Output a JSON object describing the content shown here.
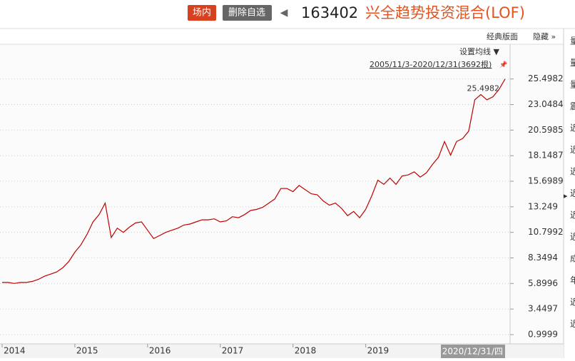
{
  "header": {
    "market_badge": "场内",
    "remove_button": "删除自选",
    "back_arrow": "◀",
    "code": "163402",
    "name": "兴全趋势投资混合(LOF)"
  },
  "toolbar": {
    "layout": "经典版面",
    "hide": "隐藏 »"
  },
  "chart_controls": {
    "moving_average": "设置均线 ▼",
    "range": "2005/11/3-2020/12/31(3692根)",
    "pin": "📌"
  },
  "sidebar": [
    "量",
    "量",
    "量",
    "震",
    "近",
    "近",
    "近",
    "近",
    "近",
    "近",
    "成",
    "年",
    "近",
    "近"
  ],
  "sidebar_arrow": "▸",
  "chart_data": {
    "type": "line",
    "categories": [
      "2014",
      null,
      null,
      null,
      null,
      null,
      null,
      null,
      null,
      null,
      null,
      null,
      "2015",
      null,
      null,
      null,
      null,
      null,
      null,
      null,
      null,
      null,
      null,
      null,
      "2016",
      null,
      null,
      null,
      null,
      null,
      null,
      null,
      null,
      null,
      null,
      null,
      "2017",
      null,
      null,
      null,
      null,
      null,
      null,
      null,
      null,
      null,
      null,
      null,
      "2018",
      null,
      null,
      null,
      null,
      null,
      null,
      null,
      null,
      null,
      null,
      null,
      "2019",
      null,
      null,
      null,
      null,
      null,
      null,
      null,
      null,
      null,
      null,
      null,
      null,
      null,
      null,
      null,
      null,
      null,
      null,
      null,
      null,
      null,
      null,
      "2020/12/31/四"
    ],
    "series": [
      {
        "color": "#c00000",
        "values": [
          6.0,
          6.0,
          5.9,
          6.0,
          6.0,
          6.1,
          6.3,
          6.6,
          6.8,
          7.0,
          7.4,
          8.0,
          8.9,
          9.6,
          10.6,
          11.8,
          12.5,
          13.6,
          10.3,
          11.2,
          10.8,
          11.3,
          11.7,
          11.8,
          11.0,
          10.2,
          10.5,
          10.8,
          11.0,
          11.2,
          11.5,
          11.6,
          11.8,
          12.0,
          12.0,
          12.1,
          11.8,
          11.9,
          12.3,
          12.2,
          12.5,
          12.9,
          13.0,
          13.2,
          13.6,
          14.0,
          15.0,
          15.0,
          14.7,
          15.3,
          14.9,
          14.5,
          14.4,
          13.8,
          13.4,
          13.6,
          13.1,
          12.4,
          12.8,
          12.2,
          13.0,
          14.3,
          15.8,
          15.4,
          16.0,
          15.4,
          16.2,
          16.3,
          16.6,
          16.1,
          16.5,
          17.3,
          18.0,
          19.5,
          18.2,
          19.5,
          19.8,
          20.5,
          23.5,
          24.0,
          23.5,
          23.8,
          24.5,
          25.4982
        ]
      }
    ],
    "ylim": [
      0.11,
      28.83
    ],
    "yticks": [
      0.9999,
      3.4497,
      5.8996,
      8.3494,
      10.7992,
      13.249,
      15.6989,
      18.1487,
      20.5985,
      23.0484,
      25.4982
    ],
    "grid": true
  }
}
